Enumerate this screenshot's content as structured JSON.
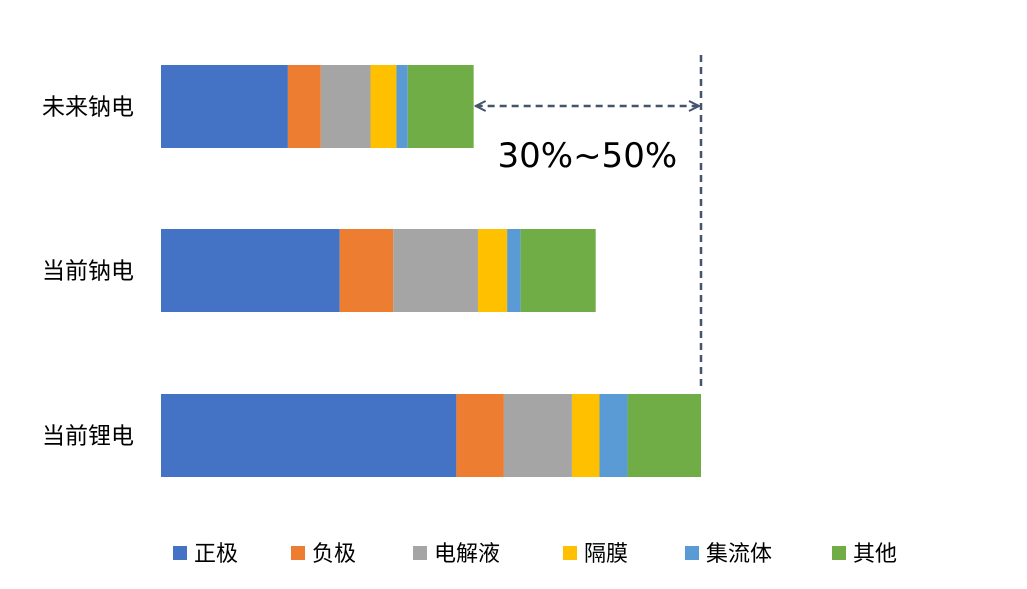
{
  "chart_data": {
    "type": "bar",
    "orientation": "horizontal",
    "stacked": true,
    "grid": false,
    "legend_position": "bottom",
    "categories": [
      "未来钠电",
      "当前钠电",
      "当前锂电"
    ],
    "series": [
      {
        "name": "正极",
        "color": "#4472C4",
        "values": [
          23.5,
          33.1,
          54.7
        ]
      },
      {
        "name": "负极",
        "color": "#ED7D31",
        "values": [
          6.1,
          9.9,
          8.8
        ]
      },
      {
        "name": "电解液",
        "color": "#A5A5A5",
        "values": [
          9.2,
          15.7,
          12.6
        ]
      },
      {
        "name": "隔膜",
        "color": "#FFC000",
        "values": [
          4.8,
          5.4,
          5.1
        ]
      },
      {
        "name": "集流体",
        "color": "#5B9BD5",
        "values": [
          2.1,
          2.5,
          5.2
        ]
      },
      {
        "name": "其他",
        "color": "#70AD47",
        "values": [
          12.2,
          13.9,
          13.6
        ]
      }
    ],
    "annotation": {
      "text": "30%~50%"
    }
  }
}
